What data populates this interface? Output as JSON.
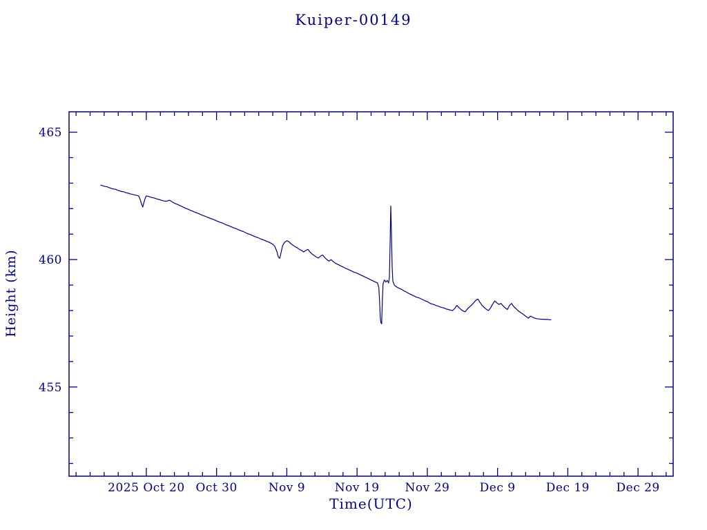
{
  "title": "Kuiper-00149",
  "colors": {
    "axis": "#000080",
    "line": "#000080",
    "text": "#000080",
    "background": "#ffffff"
  },
  "chart_data": {
    "type": "line",
    "title": "Kuiper-00149",
    "xlabel": "Time(UTC)",
    "ylabel": "Height (km)",
    "x_unit": "days relative to 2025 Oct 20",
    "xlim": [
      -11,
      75
    ],
    "ylim": [
      451.5,
      465.8
    ],
    "grid": false,
    "legend": "none",
    "x_minor_step": 2,
    "y_minor_step": 1,
    "colors": {
      "axis": "#000080",
      "line": "#000080"
    },
    "x_ticks": [
      {
        "value": 0,
        "label": "2025 Oct 20"
      },
      {
        "value": 10,
        "label": "Oct 30"
      },
      {
        "value": 20,
        "label": "Nov 9"
      },
      {
        "value": 30,
        "label": "Nov 19"
      },
      {
        "value": 40,
        "label": "Nov 29"
      },
      {
        "value": 50,
        "label": "Dec 9"
      },
      {
        "value": 60,
        "label": "Dec 19"
      },
      {
        "value": 70,
        "label": "Dec 29"
      }
    ],
    "y_ticks": [
      {
        "value": 455,
        "label": "455"
      },
      {
        "value": 460,
        "label": "460"
      },
      {
        "value": 465,
        "label": "465"
      }
    ],
    "series": [
      {
        "name": "height-km",
        "points": [
          [
            -6.5,
            462.92
          ],
          [
            -6.2,
            462.9
          ],
          [
            -5.9,
            462.87
          ],
          [
            -5.6,
            462.86
          ],
          [
            -5.3,
            462.82
          ],
          [
            -5.0,
            462.8
          ],
          [
            -4.7,
            462.77
          ],
          [
            -4.4,
            462.76
          ],
          [
            -4.1,
            462.72
          ],
          [
            -3.8,
            462.7
          ],
          [
            -3.5,
            462.67
          ],
          [
            -3.2,
            462.66
          ],
          [
            -2.9,
            462.62
          ],
          [
            -2.6,
            462.61
          ],
          [
            -2.3,
            462.58
          ],
          [
            -2.0,
            462.56
          ],
          [
            -1.7,
            462.54
          ],
          [
            -1.4,
            462.52
          ],
          [
            -1.1,
            462.5
          ],
          [
            -0.9,
            462.38
          ],
          [
            -0.7,
            462.2
          ],
          [
            -0.5,
            462.06
          ],
          [
            -0.4,
            462.18
          ],
          [
            -0.2,
            462.38
          ],
          [
            0.0,
            462.5
          ],
          [
            0.3,
            462.48
          ],
          [
            0.6,
            462.45
          ],
          [
            0.9,
            462.43
          ],
          [
            1.2,
            462.41
          ],
          [
            1.5,
            462.38
          ],
          [
            1.8,
            462.36
          ],
          [
            2.1,
            462.33
          ],
          [
            2.4,
            462.31
          ],
          [
            2.7,
            462.29
          ],
          [
            3.0,
            462.3
          ],
          [
            3.3,
            462.33
          ],
          [
            3.6,
            462.28
          ],
          [
            3.9,
            462.23
          ],
          [
            4.2,
            462.19
          ],
          [
            4.5,
            462.16
          ],
          [
            4.8,
            462.12
          ],
          [
            5.1,
            462.08
          ],
          [
            5.4,
            462.04
          ],
          [
            5.7,
            462.0
          ],
          [
            6.0,
            461.97
          ],
          [
            6.3,
            461.93
          ],
          [
            6.6,
            461.9
          ],
          [
            6.9,
            461.86
          ],
          [
            7.2,
            461.83
          ],
          [
            7.5,
            461.8
          ],
          [
            7.8,
            461.76
          ],
          [
            8.1,
            461.73
          ],
          [
            8.4,
            461.7
          ],
          [
            8.7,
            461.66
          ],
          [
            9.0,
            461.63
          ],
          [
            9.3,
            461.6
          ],
          [
            9.6,
            461.57
          ],
          [
            9.9,
            461.53
          ],
          [
            10.2,
            461.5
          ],
          [
            10.5,
            461.46
          ],
          [
            10.8,
            461.44
          ],
          [
            11.1,
            461.4
          ],
          [
            11.4,
            461.36
          ],
          [
            11.7,
            461.33
          ],
          [
            12.0,
            461.3
          ],
          [
            12.3,
            461.26
          ],
          [
            12.6,
            461.23
          ],
          [
            12.9,
            461.2
          ],
          [
            13.2,
            461.16
          ],
          [
            13.5,
            461.13
          ],
          [
            13.8,
            461.1
          ],
          [
            14.1,
            461.06
          ],
          [
            14.4,
            461.02
          ],
          [
            14.7,
            460.99
          ],
          [
            15.0,
            460.96
          ],
          [
            15.3,
            460.92
          ],
          [
            15.6,
            460.89
          ],
          [
            15.9,
            460.86
          ],
          [
            16.2,
            460.82
          ],
          [
            16.5,
            460.79
          ],
          [
            16.8,
            460.76
          ],
          [
            17.1,
            460.72
          ],
          [
            17.4,
            460.69
          ],
          [
            17.7,
            460.65
          ],
          [
            18.0,
            460.6
          ],
          [
            18.3,
            460.52
          ],
          [
            18.6,
            460.3
          ],
          [
            18.8,
            460.1
          ],
          [
            19.0,
            460.05
          ],
          [
            19.2,
            460.3
          ],
          [
            19.4,
            460.55
          ],
          [
            19.7,
            460.68
          ],
          [
            20.0,
            460.74
          ],
          [
            20.3,
            460.7
          ],
          [
            20.6,
            460.62
          ],
          [
            20.9,
            460.56
          ],
          [
            21.2,
            460.5
          ],
          [
            21.5,
            460.46
          ],
          [
            21.8,
            460.4
          ],
          [
            22.1,
            460.36
          ],
          [
            22.4,
            460.3
          ],
          [
            22.7,
            460.36
          ],
          [
            23.0,
            460.4
          ],
          [
            23.3,
            460.3
          ],
          [
            23.6,
            460.22
          ],
          [
            23.9,
            460.16
          ],
          [
            24.2,
            460.1
          ],
          [
            24.5,
            460.06
          ],
          [
            24.8,
            460.14
          ],
          [
            25.1,
            460.18
          ],
          [
            25.4,
            460.08
          ],
          [
            25.7,
            460.0
          ],
          [
            26.0,
            459.94
          ],
          [
            26.3,
            460.0
          ],
          [
            26.6,
            459.92
          ],
          [
            26.9,
            459.86
          ],
          [
            27.2,
            459.82
          ],
          [
            27.5,
            459.78
          ],
          [
            27.8,
            459.73
          ],
          [
            28.1,
            459.7
          ],
          [
            28.4,
            459.65
          ],
          [
            28.7,
            459.62
          ],
          [
            29.0,
            459.58
          ],
          [
            29.3,
            459.54
          ],
          [
            29.6,
            459.5
          ],
          [
            29.9,
            459.48
          ],
          [
            30.2,
            459.44
          ],
          [
            30.5,
            459.4
          ],
          [
            30.8,
            459.36
          ],
          [
            31.1,
            459.32
          ],
          [
            31.4,
            459.28
          ],
          [
            31.7,
            459.24
          ],
          [
            32.0,
            459.2
          ],
          [
            32.3,
            459.16
          ],
          [
            32.6,
            459.12
          ],
          [
            32.9,
            459.08
          ],
          [
            33.1,
            458.9
          ],
          [
            33.2,
            458.4
          ],
          [
            33.3,
            457.75
          ],
          [
            33.4,
            457.52
          ],
          [
            33.5,
            457.48
          ],
          [
            33.6,
            458.4
          ],
          [
            33.7,
            459.05
          ],
          [
            33.9,
            459.2
          ],
          [
            34.1,
            459.12
          ],
          [
            34.3,
            459.18
          ],
          [
            34.5,
            459.08
          ],
          [
            34.6,
            459.3
          ],
          [
            34.7,
            460.6
          ],
          [
            34.8,
            462.1
          ],
          [
            34.9,
            461.0
          ],
          [
            35.0,
            459.7
          ],
          [
            35.1,
            459.15
          ],
          [
            35.3,
            459.0
          ],
          [
            35.5,
            458.95
          ],
          [
            35.8,
            458.9
          ],
          [
            36.1,
            458.86
          ],
          [
            36.4,
            458.82
          ],
          [
            36.7,
            458.77
          ],
          [
            37.0,
            458.73
          ],
          [
            37.3,
            458.68
          ],
          [
            37.6,
            458.64
          ],
          [
            37.9,
            458.6
          ],
          [
            38.2,
            458.56
          ],
          [
            38.5,
            458.52
          ],
          [
            38.8,
            458.5
          ],
          [
            39.1,
            458.46
          ],
          [
            39.4,
            458.42
          ],
          [
            39.7,
            458.38
          ],
          [
            40.0,
            458.35
          ],
          [
            40.3,
            458.3
          ],
          [
            40.6,
            458.26
          ],
          [
            40.9,
            458.24
          ],
          [
            41.2,
            458.2
          ],
          [
            41.5,
            458.18
          ],
          [
            41.8,
            458.14
          ],
          [
            42.1,
            458.12
          ],
          [
            42.4,
            458.1
          ],
          [
            42.7,
            458.06
          ],
          [
            43.0,
            458.04
          ],
          [
            43.3,
            458.02
          ],
          [
            43.6,
            458.0
          ],
          [
            43.9,
            458.08
          ],
          [
            44.2,
            458.2
          ],
          [
            44.5,
            458.12
          ],
          [
            44.8,
            458.04
          ],
          [
            45.1,
            457.98
          ],
          [
            45.4,
            457.95
          ],
          [
            45.7,
            458.06
          ],
          [
            46.0,
            458.14
          ],
          [
            46.3,
            458.22
          ],
          [
            46.6,
            458.3
          ],
          [
            46.9,
            458.4
          ],
          [
            47.2,
            458.45
          ],
          [
            47.5,
            458.32
          ],
          [
            47.8,
            458.2
          ],
          [
            48.1,
            458.12
          ],
          [
            48.4,
            458.05
          ],
          [
            48.7,
            458.0
          ],
          [
            49.0,
            458.1
          ],
          [
            49.3,
            458.25
          ],
          [
            49.6,
            458.38
          ],
          [
            49.9,
            458.3
          ],
          [
            50.2,
            458.24
          ],
          [
            50.5,
            458.28
          ],
          [
            50.8,
            458.18
          ],
          [
            51.1,
            458.1
          ],
          [
            51.4,
            458.04
          ],
          [
            51.7,
            458.2
          ],
          [
            52.0,
            458.28
          ],
          [
            52.3,
            458.16
          ],
          [
            52.6,
            458.08
          ],
          [
            52.9,
            458.0
          ],
          [
            53.2,
            457.94
          ],
          [
            53.5,
            457.88
          ],
          [
            53.8,
            457.82
          ],
          [
            54.1,
            457.76
          ],
          [
            54.4,
            457.7
          ],
          [
            54.7,
            457.78
          ],
          [
            55.0,
            457.74
          ],
          [
            55.3,
            457.7
          ],
          [
            55.6,
            457.68
          ],
          [
            55.9,
            457.67
          ],
          [
            56.2,
            457.66
          ],
          [
            56.5,
            457.66
          ],
          [
            56.8,
            457.65
          ],
          [
            57.1,
            457.65
          ],
          [
            57.4,
            457.64
          ],
          [
            57.6,
            457.64
          ]
        ]
      }
    ]
  }
}
